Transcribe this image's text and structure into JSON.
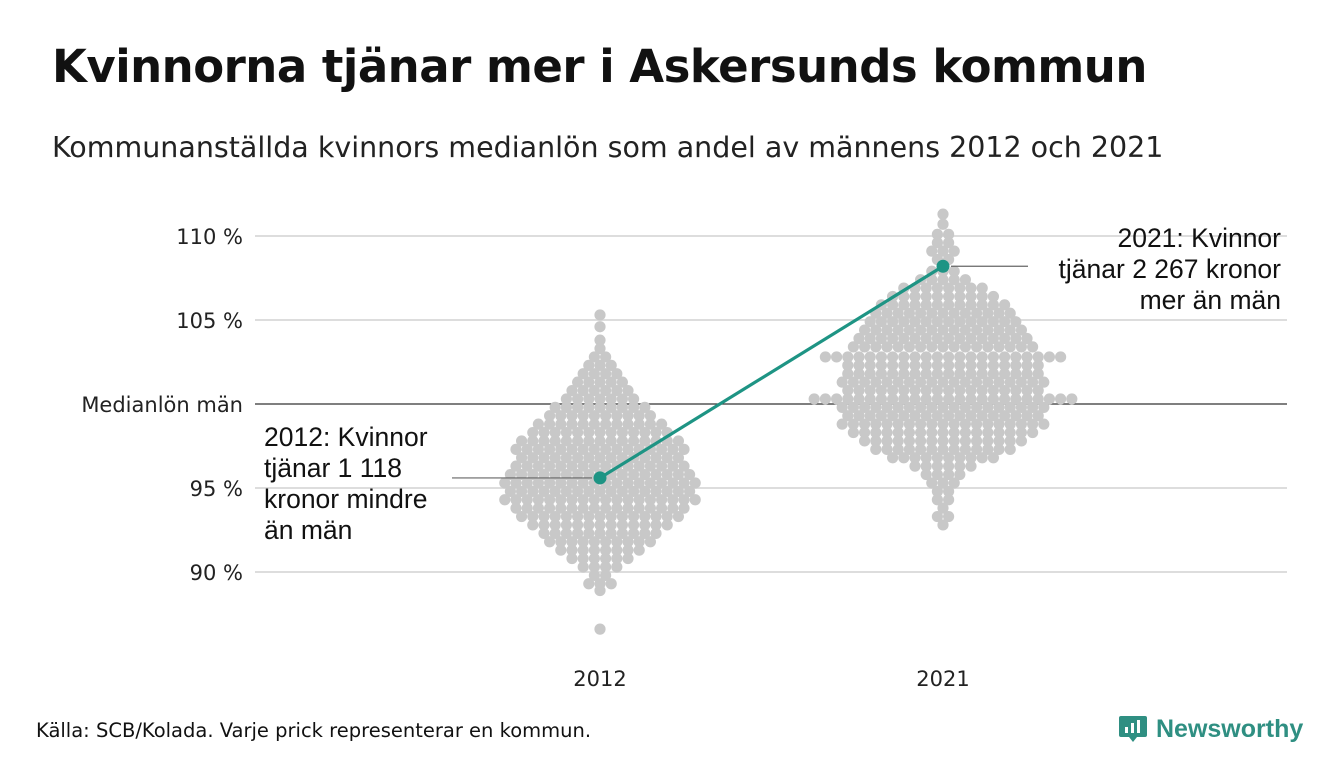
{
  "title": "Kvinnorna tjänar mer i Askersunds kommun",
  "subtitle": "Kommunanställda kvinnors medianlön som andel av männens 2012 och 2021",
  "source": "Källa: SCB/Kolada. Varje prick representerar en kommun.",
  "brand": {
    "name": "Newsworthy",
    "icon": "newsworthy-logo-icon",
    "color": "#2f8f82"
  },
  "chart_data": {
    "type": "scatter",
    "title": "Kvinnorna tjänar mer i Askersunds kommun",
    "categories": [
      "2012",
      "2021"
    ],
    "y_ticks": [
      {
        "value": 110,
        "label": "110 %"
      },
      {
        "value": 105,
        "label": "105 %"
      },
      {
        "value": 100,
        "label": "Medianlön män"
      },
      {
        "value": 95,
        "label": "95 %"
      },
      {
        "value": 90,
        "label": "90 %"
      }
    ],
    "ylim": [
      86,
      112
    ],
    "reference_line": {
      "value": 100,
      "label": "Medianlön män"
    },
    "grid": true,
    "highlight": {
      "color": "#1e9484",
      "points": [
        {
          "x": "2012",
          "y": 95.6
        },
        {
          "x": "2021",
          "y": 108.2
        }
      ]
    },
    "annotations": [
      {
        "x": "2012",
        "y": 95.6,
        "lines": [
          "2012: Kvinnor",
          "tjänar 1 118",
          "kronor mindre",
          "än män"
        ]
      },
      {
        "x": "2021",
        "y": 108.2,
        "lines": [
          "2021: Kvinnor",
          "tjänar 2 267 kronor",
          "mer än män"
        ]
      }
    ],
    "background_series": {
      "color": "#c8c8c8",
      "note": "approximate distribution of all municipalities, values in percent",
      "2012": [
        [
          105.3,
          1
        ],
        [
          104.6,
          1
        ],
        [
          103.8,
          1
        ],
        [
          103.3,
          1
        ],
        [
          102.8,
          2
        ],
        [
          102.3,
          3
        ],
        [
          101.8,
          4
        ],
        [
          101.3,
          5
        ],
        [
          100.8,
          6
        ],
        [
          100.3,
          7
        ],
        [
          99.8,
          9
        ],
        [
          99.3,
          10
        ],
        [
          98.8,
          12
        ],
        [
          98.3,
          13
        ],
        [
          97.8,
          15
        ],
        [
          97.3,
          16
        ],
        [
          96.8,
          15
        ],
        [
          96.3,
          16
        ],
        [
          95.8,
          17
        ],
        [
          95.3,
          18
        ],
        [
          94.8,
          17
        ],
        [
          94.3,
          18
        ],
        [
          93.8,
          16
        ],
        [
          93.3,
          15
        ],
        [
          92.8,
          13
        ],
        [
          92.3,
          11
        ],
        [
          91.8,
          10
        ],
        [
          91.3,
          8
        ],
        [
          90.8,
          6
        ],
        [
          90.3,
          4
        ],
        [
          89.8,
          2
        ],
        [
          89.3,
          3
        ],
        [
          88.9,
          1
        ],
        [
          86.6,
          1
        ]
      ],
      "2021": [
        [
          111.3,
          1
        ],
        [
          110.7,
          1
        ],
        [
          110.1,
          2
        ],
        [
          109.6,
          2
        ],
        [
          109.1,
          3
        ],
        [
          108.6,
          2
        ],
        [
          107.9,
          3
        ],
        [
          107.4,
          5
        ],
        [
          106.9,
          8
        ],
        [
          106.4,
          10
        ],
        [
          105.9,
          12
        ],
        [
          105.4,
          13
        ],
        [
          104.9,
          14
        ],
        [
          104.4,
          15
        ],
        [
          103.9,
          16
        ],
        [
          103.4,
          17
        ],
        [
          102.8,
          22
        ],
        [
          102.3,
          18
        ],
        [
          101.8,
          18
        ],
        [
          101.3,
          19
        ],
        [
          100.8,
          18
        ],
        [
          100.3,
          24
        ],
        [
          99.8,
          19
        ],
        [
          99.3,
          18
        ],
        [
          98.8,
          19
        ],
        [
          98.3,
          17
        ],
        [
          97.8,
          15
        ],
        [
          97.3,
          13
        ],
        [
          96.8,
          10
        ],
        [
          96.3,
          6
        ],
        [
          95.8,
          4
        ],
        [
          95.3,
          3
        ],
        [
          94.8,
          2
        ],
        [
          94.3,
          2
        ],
        [
          93.8,
          1
        ],
        [
          93.3,
          2
        ],
        [
          92.8,
          1
        ]
      ]
    }
  }
}
